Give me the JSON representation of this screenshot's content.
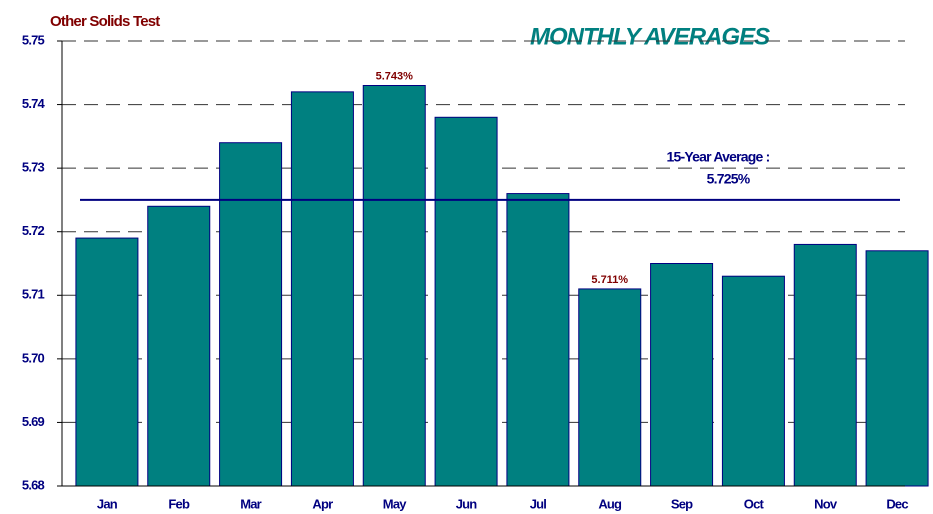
{
  "chart_data": {
    "type": "bar",
    "title": "Other Solids Test",
    "subtitle": "MONTHLY AVERAGES",
    "categories": [
      "Jan",
      "Feb",
      "Mar",
      "Apr",
      "May",
      "Jun",
      "Jul",
      "Aug",
      "Sep",
      "Oct",
      "Nov",
      "Dec"
    ],
    "values": [
      5.719,
      5.724,
      5.734,
      5.742,
      5.743,
      5.738,
      5.726,
      5.711,
      5.715,
      5.713,
      5.718,
      5.717
    ],
    "value_labels": [
      null,
      null,
      null,
      null,
      "5.743%",
      null,
      null,
      "5.711%",
      null,
      null,
      null,
      null
    ],
    "color": "#008080",
    "ylim": [
      5.68,
      5.75
    ],
    "yticks": [
      5.68,
      5.69,
      {
        "value": 5.7,
        "label": "5.70"
      },
      5.71,
      5.72,
      5.73,
      5.74,
      5.75
    ],
    "grid": true,
    "average_line": {
      "value": 5.725,
      "label": "15-Year Average :",
      "value_label": "5.725%",
      "color": "#000080"
    }
  }
}
